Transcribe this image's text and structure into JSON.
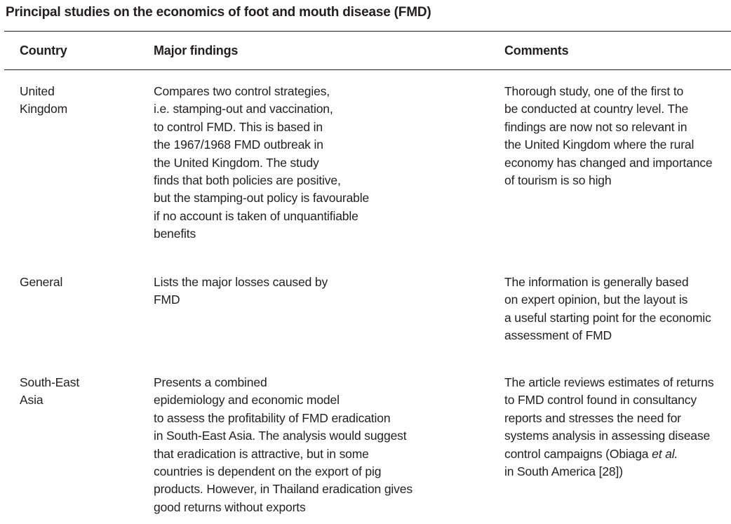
{
  "table": {
    "title": "Principal studies on the economics of foot and mouth disease (FMD)",
    "headers": {
      "country": "Country",
      "findings": "Major findings",
      "comments": "Comments"
    },
    "rows": [
      {
        "country": [
          "United",
          "Kingdom"
        ],
        "findings": [
          "Compares two control strategies,",
          "i.e. stamping-out and vaccination,",
          "to control FMD. This is based in",
          "the 1967/1968 FMD outbreak in",
          "the United Kingdom. The study",
          "finds that both policies are positive,",
          "but the stamping-out policy is favourable",
          "if no account is taken of unquantifiable",
          "benefits"
        ],
        "comments": [
          "Thorough study, one of the first to",
          "be conducted at country level. The",
          "findings are now not so relevant in",
          "the United Kingdom where the rural",
          "economy has changed and importance",
          "of tourism is so high"
        ]
      },
      {
        "country": [
          "General"
        ],
        "findings": [
          "Lists the major losses caused by",
          "FMD"
        ],
        "comments": [
          "The information is generally based",
          "on expert opinion, but the layout is",
          "a useful starting point for the economic",
          "assessment of FMD"
        ]
      },
      {
        "country": [
          "South-East",
          "Asia"
        ],
        "findings": [
          "Presents a combined",
          "epidemiology and economic model",
          "to assess the profitability of FMD eradication",
          "in South-East Asia. The analysis would suggest",
          "that eradication is attractive, but in some",
          "countries is dependent on the export of pig",
          "products. However, in Thailand eradication gives",
          "good returns without exports"
        ],
        "comments": [
          "The article reviews estimates of returns",
          "to FMD control found in consultancy",
          "reports and stresses the need for",
          "systems analysis in assessing disease",
          "control campaigns (Obiaga ",
          "et al.",
          "in South America [28])"
        ]
      }
    ]
  }
}
